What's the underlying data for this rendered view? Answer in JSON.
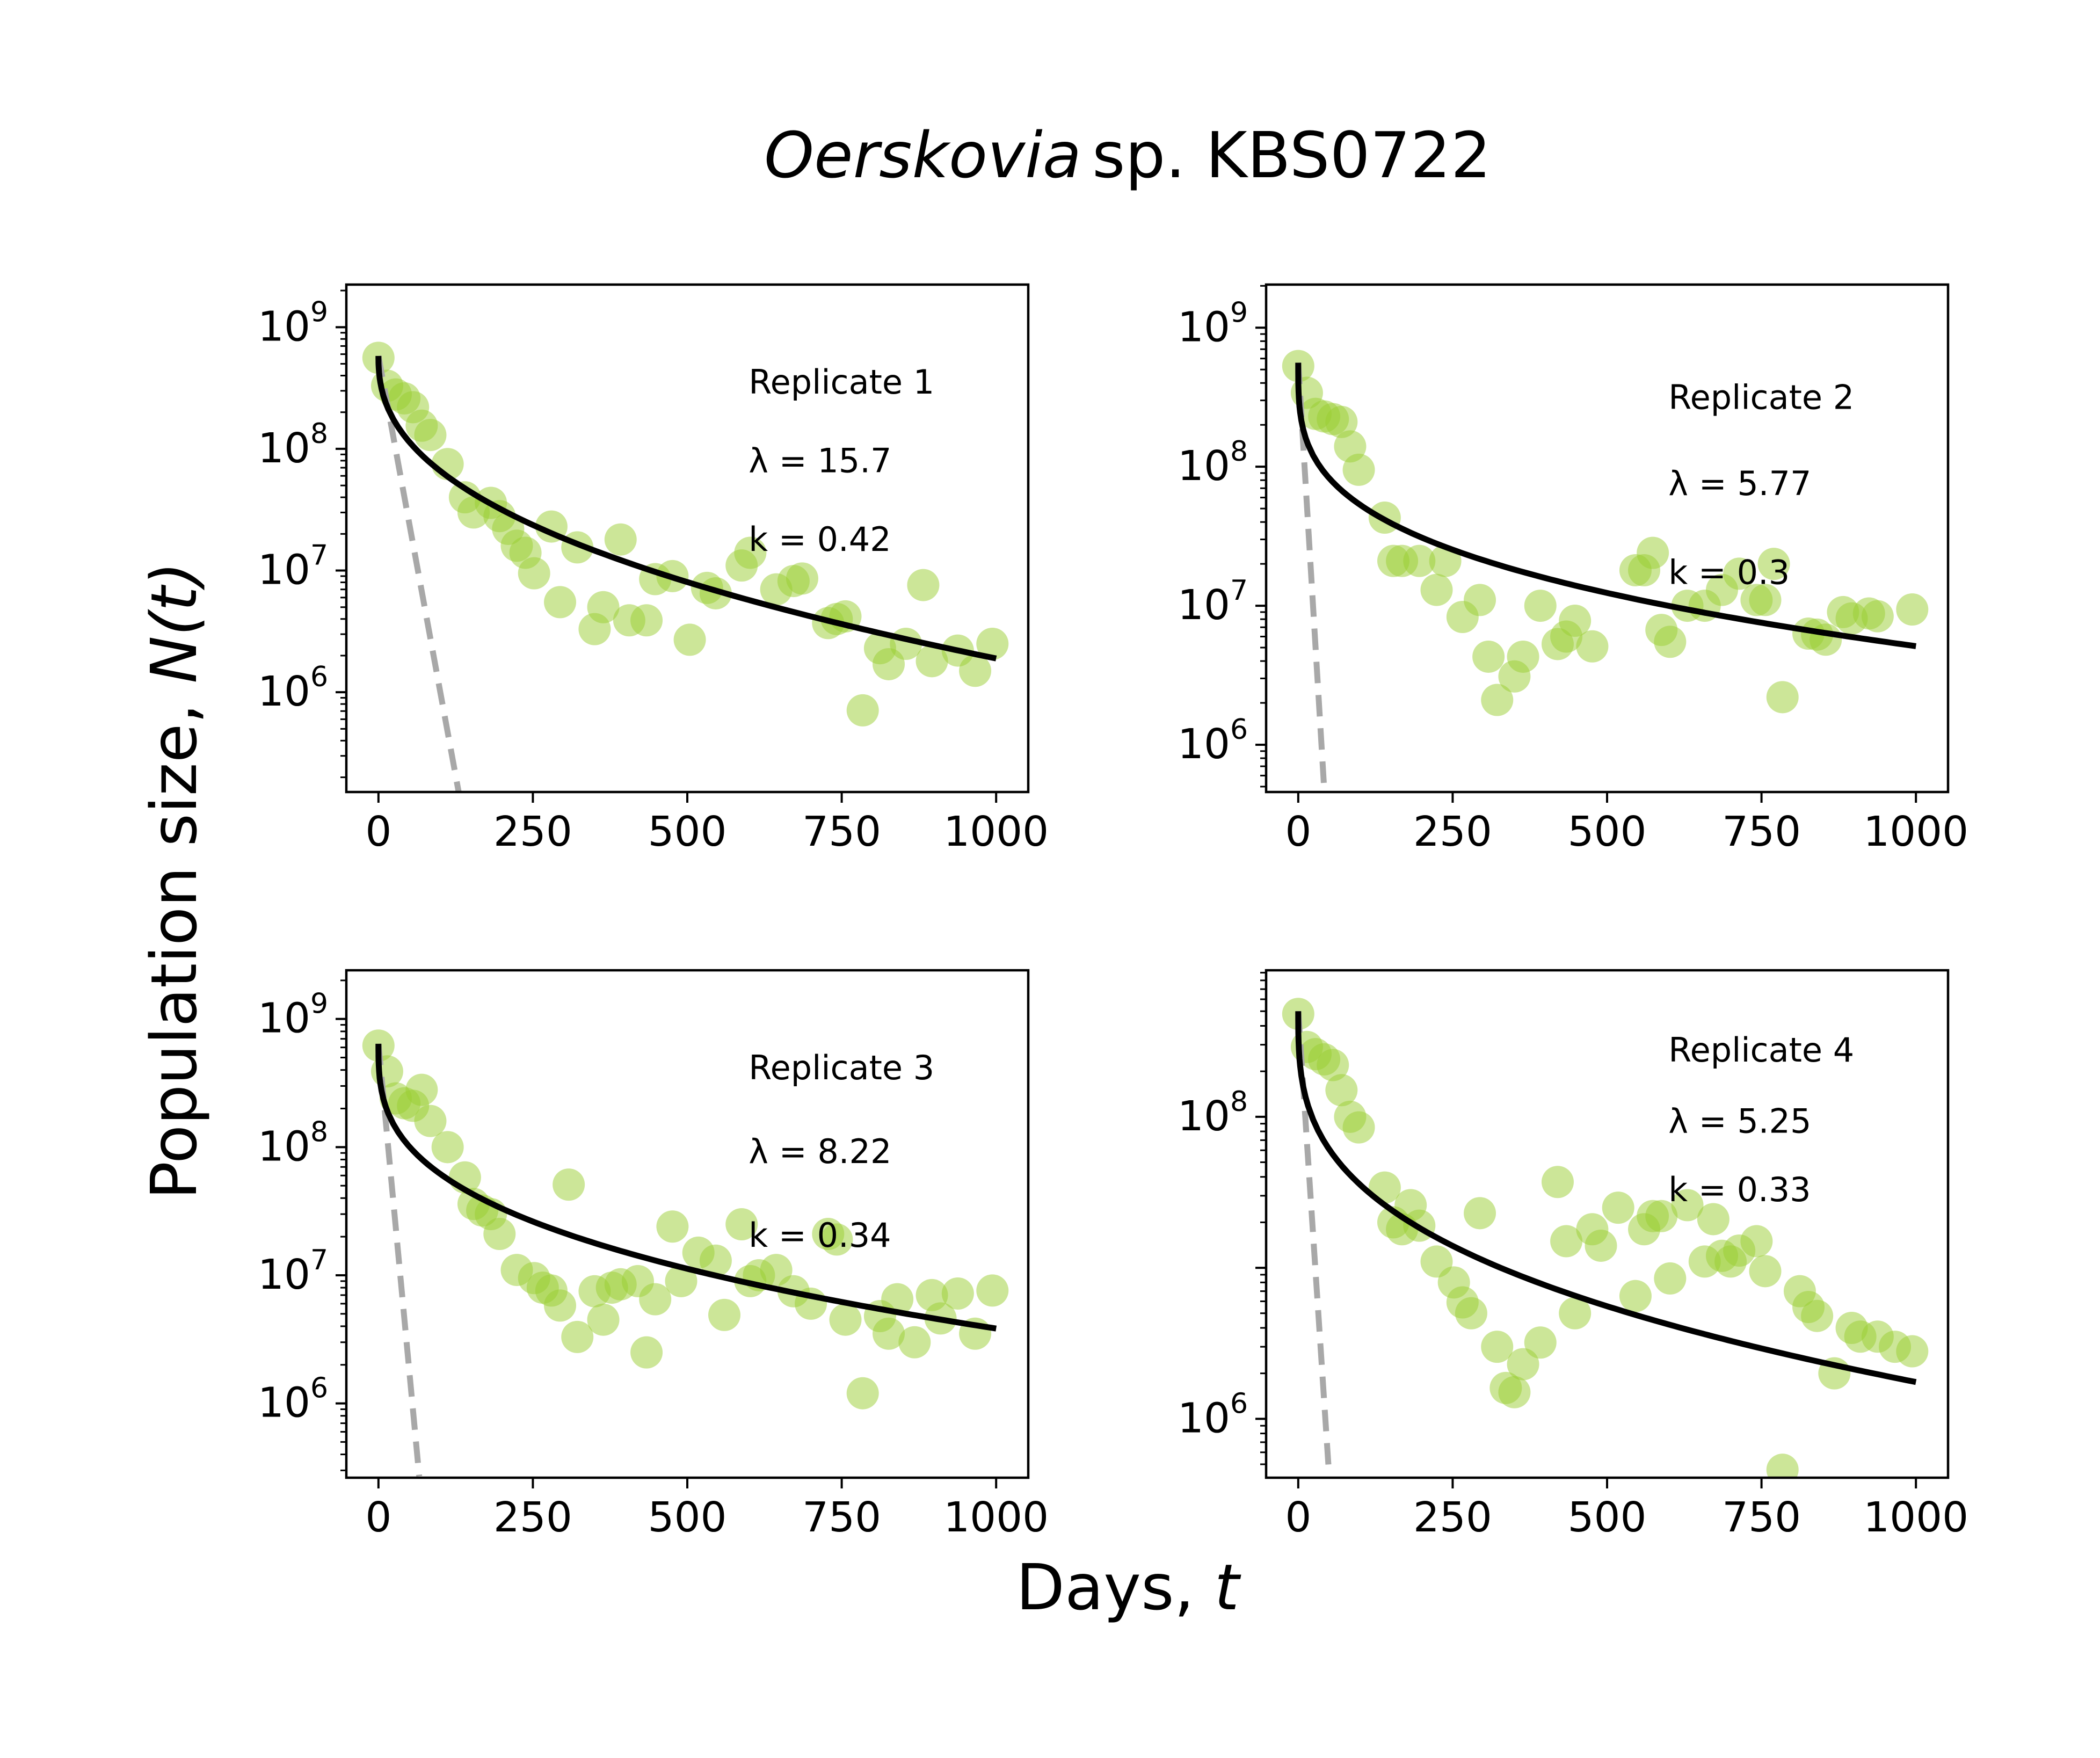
{
  "figure": {
    "title_italic": "Oerskovia",
    "title_rest": "sp. KBS0722",
    "xlabel_prefix": "Days, ",
    "xlabel_var": "t",
    "ylabel_prefix": "Population size, ",
    "ylabel_var": "N(t)"
  },
  "colors": {
    "points": "#9acd32",
    "fit": "#000000",
    "dashed": "#a8a8a8"
  },
  "chart_data": [
    {
      "type": "scatter",
      "replicate_label": "Replicate 1",
      "lambda_label": "λ = 15.7",
      "k_label": "k = 0.42",
      "lambda": 15.7,
      "k": 0.42,
      "yscale": "log",
      "xlim": [
        -52,
        1052
      ],
      "ylim_log10": [
        5.18,
        9.35
      ],
      "xticks": [
        0,
        250,
        500,
        750,
        1000
      ],
      "yticks_exp": [
        6,
        7,
        8,
        9
      ],
      "N0": 580000000,
      "dashed_end": [
        130,
        150000
      ],
      "points": [
        [
          0,
          560000000
        ],
        [
          14,
          330000000
        ],
        [
          28,
          280000000
        ],
        [
          42,
          260000000
        ],
        [
          56,
          220000000
        ],
        [
          70,
          155000000
        ],
        [
          84,
          130000000
        ],
        [
          112,
          75000000
        ],
        [
          140,
          40000000
        ],
        [
          154,
          30000000
        ],
        [
          182,
          36000000
        ],
        [
          196,
          28000000
        ],
        [
          210,
          22000000
        ],
        [
          224,
          16000000
        ],
        [
          238,
          14000000
        ],
        [
          252,
          9500000
        ],
        [
          280,
          23000000
        ],
        [
          294,
          5500000
        ],
        [
          322,
          15500000
        ],
        [
          350,
          3300000
        ],
        [
          364,
          5000000
        ],
        [
          392,
          18000000
        ],
        [
          406,
          3900000
        ],
        [
          434,
          3900000
        ],
        [
          448,
          8500000
        ],
        [
          476,
          9000000
        ],
        [
          504,
          2700000
        ],
        [
          532,
          7200000
        ],
        [
          546,
          6500000
        ],
        [
          588,
          11000000
        ],
        [
          602,
          14000000
        ],
        [
          644,
          7000000
        ],
        [
          672,
          8200000
        ],
        [
          686,
          8600000
        ],
        [
          728,
          3700000
        ],
        [
          742,
          4000000
        ],
        [
          756,
          4200000
        ],
        [
          784,
          710000
        ],
        [
          812,
          2300000
        ],
        [
          826,
          1700000
        ],
        [
          854,
          2500000
        ],
        [
          882,
          7600000
        ],
        [
          896,
          1800000
        ],
        [
          938,
          2200000
        ],
        [
          966,
          1500000
        ],
        [
          994,
          2500000
        ]
      ]
    },
    {
      "type": "scatter",
      "replicate_label": "Replicate 2",
      "lambda_label": "λ = 5.77",
      "k_label": "k = 0.3",
      "lambda": 5.77,
      "k": 0.3,
      "yscale": "log",
      "xlim": [
        -52,
        1052
      ],
      "ylim_log10": [
        5.66,
        9.31
      ],
      "xticks": [
        0,
        250,
        500,
        750,
        1000
      ],
      "yticks_exp": [
        6,
        7,
        8,
        9
      ],
      "N0": 560000000,
      "dashed_end": [
        42,
        480000
      ],
      "points": [
        [
          0,
          530000000
        ],
        [
          14,
          340000000
        ],
        [
          28,
          240000000
        ],
        [
          42,
          230000000
        ],
        [
          56,
          220000000
        ],
        [
          70,
          210000000
        ],
        [
          84,
          140000000
        ],
        [
          98,
          95000000
        ],
        [
          140,
          43000000
        ],
        [
          154,
          21000000
        ],
        [
          168,
          21000000
        ],
        [
          196,
          21000000
        ],
        [
          224,
          13000000
        ],
        [
          238,
          21000000
        ],
        [
          266,
          8300000
        ],
        [
          294,
          11000000
        ],
        [
          308,
          4300000
        ],
        [
          322,
          2100000
        ],
        [
          350,
          3100000
        ],
        [
          364,
          4300000
        ],
        [
          392,
          10000000
        ],
        [
          420,
          5300000
        ],
        [
          434,
          6000000
        ],
        [
          448,
          7800000
        ],
        [
          476,
          5100000
        ],
        [
          546,
          18000000
        ],
        [
          560,
          18000000
        ],
        [
          574,
          24000000
        ],
        [
          588,
          6700000
        ],
        [
          602,
          5500000
        ],
        [
          630,
          10000000
        ],
        [
          658,
          10000000
        ],
        [
          686,
          13000000
        ],
        [
          714,
          17000000
        ],
        [
          742,
          11000000
        ],
        [
          756,
          11000000
        ],
        [
          770,
          20000000
        ],
        [
          784,
          2200000
        ],
        [
          826,
          6300000
        ],
        [
          840,
          6200000
        ],
        [
          854,
          5700000
        ],
        [
          882,
          9000000
        ],
        [
          896,
          8100000
        ],
        [
          924,
          8800000
        ],
        [
          938,
          8400000
        ],
        [
          994,
          9400000
        ]
      ]
    },
    {
      "type": "scatter",
      "replicate_label": "Replicate 3",
      "lambda_label": "λ = 8.22",
      "k_label": "k = 0.34",
      "lambda": 8.22,
      "k": 0.34,
      "yscale": "log",
      "xlim": [
        -52,
        1052
      ],
      "ylim_log10": [
        5.42,
        9.38
      ],
      "xticks": [
        0,
        250,
        500,
        750,
        1000
      ],
      "yticks_exp": [
        6,
        7,
        8,
        9
      ],
      "N0": 640000000,
      "dashed_end": [
        66,
        270000
      ],
      "points": [
        [
          0,
          620000000
        ],
        [
          14,
          390000000
        ],
        [
          28,
          240000000
        ],
        [
          42,
          220000000
        ],
        [
          56,
          210000000
        ],
        [
          70,
          280000000
        ],
        [
          84,
          160000000
        ],
        [
          112,
          100000000
        ],
        [
          140,
          58000000
        ],
        [
          154,
          36000000
        ],
        [
          168,
          32000000
        ],
        [
          182,
          30000000
        ],
        [
          196,
          21000000
        ],
        [
          224,
          11000000
        ],
        [
          252,
          9500000
        ],
        [
          266,
          8000000
        ],
        [
          280,
          7600000
        ],
        [
          294,
          5800000
        ],
        [
          308,
          51000000
        ],
        [
          322,
          3300000
        ],
        [
          350,
          7500000
        ],
        [
          364,
          4500000
        ],
        [
          378,
          8000000
        ],
        [
          392,
          8500000
        ],
        [
          420,
          9000000
        ],
        [
          434,
          2500000
        ],
        [
          448,
          6500000
        ],
        [
          476,
          24000000
        ],
        [
          490,
          9000000
        ],
        [
          518,
          15000000
        ],
        [
          546,
          13000000
        ],
        [
          560,
          4900000
        ],
        [
          588,
          25000000
        ],
        [
          602,
          9000000
        ],
        [
          616,
          10000000
        ],
        [
          644,
          11000000
        ],
        [
          672,
          7500000
        ],
        [
          700,
          6000000
        ],
        [
          728,
          21000000
        ],
        [
          742,
          19000000
        ],
        [
          756,
          4500000
        ],
        [
          784,
          1200000
        ],
        [
          812,
          4800000
        ],
        [
          826,
          3500000
        ],
        [
          840,
          6500000
        ],
        [
          868,
          3000000
        ],
        [
          896,
          7000000
        ],
        [
          910,
          4600000
        ],
        [
          938,
          7200000
        ],
        [
          966,
          3500000
        ],
        [
          994,
          7600000
        ]
      ]
    },
    {
      "type": "scatter",
      "replicate_label": "Replicate 4",
      "lambda_label": "λ = 5.25",
      "k_label": "k = 0.33",
      "lambda": 5.25,
      "k": 0.33,
      "yscale": "log",
      "xlim": [
        -52,
        1052
      ],
      "ylim_log10": [
        5.61,
        8.97
      ],
      "xticks": [
        0,
        250,
        500,
        750,
        1000
      ],
      "yticks_exp": [
        6,
        8
      ],
      "N0": 500000000,
      "dashed_end": [
        50,
        420000
      ],
      "points": [
        [
          0,
          480000000
        ],
        [
          14,
          290000000
        ],
        [
          28,
          260000000
        ],
        [
          42,
          240000000
        ],
        [
          56,
          220000000
        ],
        [
          70,
          150000000
        ],
        [
          84,
          100000000
        ],
        [
          98,
          85000000
        ],
        [
          140,
          34000000
        ],
        [
          154,
          20000000
        ],
        [
          168,
          18000000
        ],
        [
          182,
          26000000
        ],
        [
          196,
          19000000
        ],
        [
          224,
          11000000
        ],
        [
          252,
          8000000
        ],
        [
          266,
          5900000
        ],
        [
          280,
          5000000
        ],
        [
          294,
          23000000
        ],
        [
          322,
          3000000
        ],
        [
          336,
          1600000
        ],
        [
          350,
          1500000
        ],
        [
          364,
          2300000
        ],
        [
          392,
          3200000
        ],
        [
          420,
          37000000
        ],
        [
          434,
          15000000
        ],
        [
          448,
          5000000
        ],
        [
          476,
          18000000
        ],
        [
          490,
          14000000
        ],
        [
          518,
          25000000
        ],
        [
          546,
          6500000
        ],
        [
          560,
          18000000
        ],
        [
          574,
          22000000
        ],
        [
          588,
          22000000
        ],
        [
          602,
          8500000
        ],
        [
          630,
          26000000
        ],
        [
          658,
          11000000
        ],
        [
          672,
          21000000
        ],
        [
          686,
          12000000
        ],
        [
          700,
          11000000
        ],
        [
          714,
          13000000
        ],
        [
          742,
          15000000
        ],
        [
          756,
          9500000
        ],
        [
          784,
          460000
        ],
        [
          812,
          7000000
        ],
        [
          826,
          5500000
        ],
        [
          840,
          4800000
        ],
        [
          868,
          2000000
        ],
        [
          896,
          4000000
        ],
        [
          910,
          3500000
        ],
        [
          938,
          3500000
        ],
        [
          966,
          3000000
        ],
        [
          994,
          2800000
        ]
      ]
    }
  ]
}
